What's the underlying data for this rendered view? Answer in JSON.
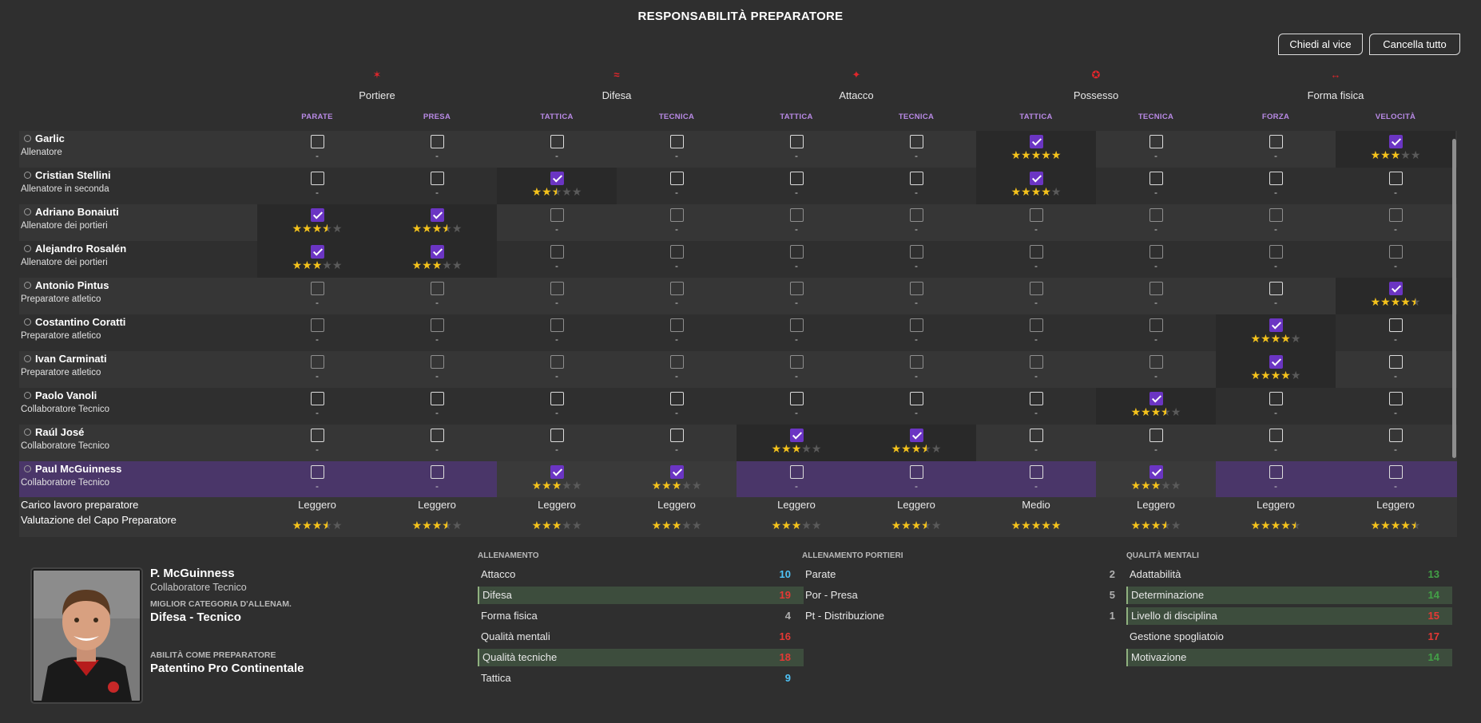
{
  "title": "RESPONSABILITÀ PREPARATORE",
  "buttons": {
    "ask_assistant": "Chiedi al vice",
    "clear_all": "Cancella tutto"
  },
  "categories": [
    {
      "name": "Portiere",
      "icon": "goalkeeper-icon"
    },
    {
      "name": "Difesa",
      "icon": "defending-icon"
    },
    {
      "name": "Attacco",
      "icon": "attacking-icon"
    },
    {
      "name": "Possesso",
      "icon": "possession-icon"
    },
    {
      "name": "Forma fisica",
      "icon": "fitness-icon"
    }
  ],
  "subcategories": [
    "PARATE",
    "PRESA",
    "TATTICA",
    "TECNICA",
    "TATTICA",
    "TECNICA",
    "TATTICA",
    "TECNICA",
    "FORZA",
    "VELOCITÀ"
  ],
  "staff": [
    {
      "name": "Garlic",
      "role": "Allenatore",
      "checked": [
        6,
        9
      ],
      "ratings": {
        "6": 5,
        "9": 3
      },
      "enabled": true
    },
    {
      "name": "Cristian Stellini",
      "role": "Allenatore in seconda",
      "checked": [
        2,
        6
      ],
      "ratings": {
        "2": 2.5,
        "6": 4
      },
      "enabled": true
    },
    {
      "name": "Adriano Bonaiuti",
      "role": "Allenatore dei portieri",
      "checked": [
        0,
        1
      ],
      "ratings": {
        "0": 3.5,
        "1": 3.5
      },
      "enabled": false
    },
    {
      "name": "Alejandro Rosalén",
      "role": "Allenatore dei portieri",
      "checked": [
        0,
        1
      ],
      "ratings": {
        "0": 3,
        "1": 3
      },
      "enabled": false
    },
    {
      "name": "Antonio Pintus",
      "role": "Preparatore atletico",
      "checked": [
        9
      ],
      "ratings": {
        "9": 4.5
      },
      "enabled": false,
      "enabled_cols": [
        8,
        9
      ]
    },
    {
      "name": "Costantino Coratti",
      "role": "Preparatore atletico",
      "checked": [
        8
      ],
      "ratings": {
        "8": 4
      },
      "enabled": false,
      "enabled_cols": [
        8,
        9
      ]
    },
    {
      "name": "Ivan Carminati",
      "role": "Preparatore atletico",
      "checked": [
        8
      ],
      "ratings": {
        "8": 4
      },
      "enabled": false,
      "enabled_cols": [
        8,
        9
      ]
    },
    {
      "name": "Paolo Vanoli",
      "role": "Collaboratore Tecnico",
      "checked": [
        7
      ],
      "ratings": {
        "7": 3.5
      },
      "enabled": true
    },
    {
      "name": "Raúl José",
      "role": "Collaboratore Tecnico",
      "checked": [
        4,
        5
      ],
      "ratings": {
        "4": 3,
        "5": 3.5
      },
      "enabled": true
    },
    {
      "name": "Paul McGuinness",
      "role": "Collaboratore Tecnico",
      "checked": [
        2,
        3,
        7
      ],
      "ratings": {
        "2": 3,
        "3": 3,
        "7": 3
      },
      "enabled": true,
      "selected": true
    }
  ],
  "empty_mark": "-",
  "summary": {
    "workload_label": "Carico lavoro preparatore",
    "rating_label": "Valutazione del Capo Preparatore",
    "workload": [
      "Leggero",
      "Leggero",
      "Leggero",
      "Leggero",
      "Leggero",
      "Leggero",
      "Medio",
      "Leggero",
      "Leggero",
      "Leggero"
    ],
    "ratings": [
      3.5,
      3.5,
      3,
      3,
      3,
      3.5,
      5,
      3.5,
      4.5,
      4.5
    ]
  },
  "details": {
    "name": "P. McGuinness",
    "role": "Collaboratore Tecnico",
    "best_category_label": "MIGLIOR CATEGORIA D'ALLENAM.",
    "best_category": "Difesa - Tecnico",
    "coach_ability_label": "ABILITÀ COME PREPARATORE",
    "coach_ability": "Patentino Pro Continentale"
  },
  "attributes": {
    "training": {
      "title": "ALLENAMENTO",
      "items": [
        {
          "name": "Attacco",
          "value": 10,
          "color": "#4fc3f7",
          "highlight": false
        },
        {
          "name": "Difesa",
          "value": 19,
          "color": "#e53935",
          "highlight": true
        },
        {
          "name": "Forma fisica",
          "value": 4,
          "color": "#b0b0b0",
          "highlight": false
        },
        {
          "name": "Qualità mentali",
          "value": 16,
          "color": "#e53935",
          "highlight": false
        },
        {
          "name": "Qualità tecniche",
          "value": 18,
          "color": "#e53935",
          "highlight": true
        },
        {
          "name": "Tattica",
          "value": 9,
          "color": "#4fc3f7",
          "highlight": false
        }
      ]
    },
    "goalkeeping": {
      "title": "ALLENAMENTO PORTIERI",
      "items": [
        {
          "name": "Parate",
          "value": 2,
          "color": "#b0b0b0",
          "highlight": false
        },
        {
          "name": "Por - Presa",
          "value": 5,
          "color": "#b0b0b0",
          "highlight": false
        },
        {
          "name": "Pt - Distribuzione",
          "value": 1,
          "color": "#b0b0b0",
          "highlight": false
        }
      ]
    },
    "mental": {
      "title": "QUALITÀ MENTALI",
      "items": [
        {
          "name": "Adattabilità",
          "value": 13,
          "color": "#43a047",
          "highlight": false
        },
        {
          "name": "Determinazione",
          "value": 14,
          "color": "#43a047",
          "highlight": true
        },
        {
          "name": "Livello di disciplina",
          "value": 15,
          "color": "#e53935",
          "highlight": true
        },
        {
          "name": "Gestione spogliatoio",
          "value": 17,
          "color": "#e53935",
          "highlight": false
        },
        {
          "name": "Motivazione",
          "value": 14,
          "color": "#43a047",
          "highlight": true
        }
      ]
    }
  }
}
